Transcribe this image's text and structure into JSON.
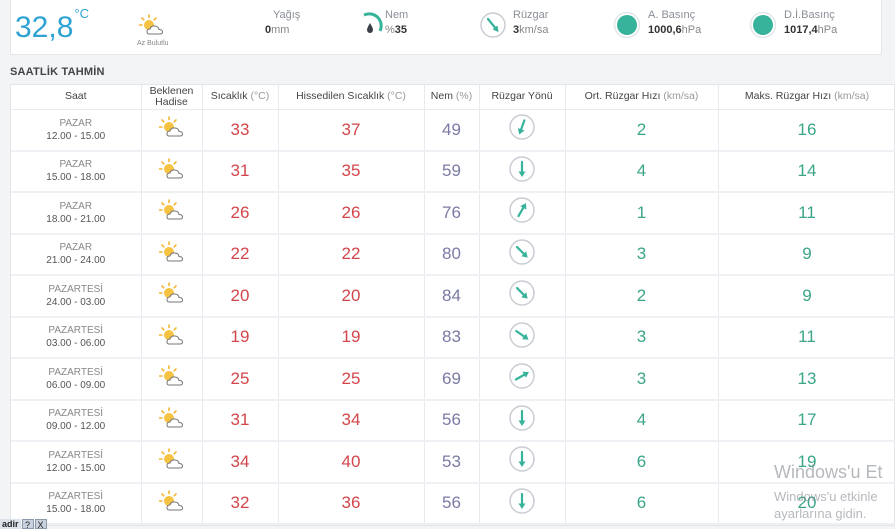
{
  "current": {
    "temperature": "32,8",
    "temperature_unit": "°C",
    "condition": "Az Bulutlu",
    "rain": {
      "label": "Yağış",
      "value": "0",
      "unit": "mm"
    },
    "humidity": {
      "label": "Nem",
      "prefix": "%",
      "value": "35"
    },
    "wind": {
      "label": "Rüzgar",
      "value": "3",
      "unit": "km/sa"
    },
    "pressure": {
      "label": "A. Basınç",
      "value": "1000,6",
      "unit": "hPa"
    },
    "sea_pressure": {
      "label": "D.İ.Basınç",
      "value": "1017,4",
      "unit": "hPa"
    }
  },
  "section_title": "SAATLİK TAHMİN",
  "columns": [
    {
      "label": "Saat",
      "unit": ""
    },
    {
      "label": "Beklenen Hadise",
      "unit": ""
    },
    {
      "label": "Sıcaklık",
      "unit": "(°C)"
    },
    {
      "label": "Hissedilen Sıcaklık",
      "unit": "(°C)"
    },
    {
      "label": "Nem",
      "unit": "(%)"
    },
    {
      "label": "Rüzgar Yönü",
      "unit": ""
    },
    {
      "label": "Ort. Rüzgar Hızı",
      "unit": "(km/sa)"
    },
    {
      "label": "Maks. Rüzgar Hızı",
      "unit": "(km/sa)"
    }
  ],
  "rows": [
    {
      "day": "PAZAR",
      "hours": "12.00 - 15.00",
      "temp": "33",
      "feels": "37",
      "humidity": "49",
      "wind_deg": 200,
      "avg_wind": "2",
      "max_wind": "16"
    },
    {
      "day": "PAZAR",
      "hours": "15.00 - 18.00",
      "temp": "31",
      "feels": "35",
      "humidity": "59",
      "wind_deg": 180,
      "avg_wind": "4",
      "max_wind": "14"
    },
    {
      "day": "PAZAR",
      "hours": "18.00 - 21.00",
      "temp": "26",
      "feels": "26",
      "humidity": "76",
      "wind_deg": 30,
      "avg_wind": "1",
      "max_wind": "11"
    },
    {
      "day": "PAZAR",
      "hours": "21.00 - 24.00",
      "temp": "22",
      "feels": "22",
      "humidity": "80",
      "wind_deg": 135,
      "avg_wind": "3",
      "max_wind": "9"
    },
    {
      "day": "PAZARTESİ",
      "hours": "24.00 - 03.00",
      "temp": "20",
      "feels": "20",
      "humidity": "84",
      "wind_deg": 135,
      "avg_wind": "2",
      "max_wind": "9"
    },
    {
      "day": "PAZARTESİ",
      "hours": "03.00 - 06.00",
      "temp": "19",
      "feels": "19",
      "humidity": "83",
      "wind_deg": 125,
      "avg_wind": "3",
      "max_wind": "11"
    },
    {
      "day": "PAZARTESİ",
      "hours": "06.00 - 09.00",
      "temp": "25",
      "feels": "25",
      "humidity": "69",
      "wind_deg": 60,
      "avg_wind": "3",
      "max_wind": "13"
    },
    {
      "day": "PAZARTESİ",
      "hours": "09.00 - 12.00",
      "temp": "31",
      "feels": "34",
      "humidity": "56",
      "wind_deg": 180,
      "avg_wind": "4",
      "max_wind": "17"
    },
    {
      "day": "PAZARTESİ",
      "hours": "12.00 - 15.00",
      "temp": "34",
      "feels": "40",
      "humidity": "53",
      "wind_deg": 180,
      "avg_wind": "6",
      "max_wind": "19"
    },
    {
      "day": "PAZARTESİ",
      "hours": "15.00 - 18.00",
      "temp": "32",
      "feels": "36",
      "humidity": "56",
      "wind_deg": 180,
      "avg_wind": "6",
      "max_wind": "20"
    }
  ],
  "watermark": {
    "title": "Windows'u Et",
    "line1": "Windows'u etkinle",
    "line2": "ayarlarına gidin."
  },
  "taskbar_fragment": {
    "text": "adir",
    "help": "?",
    "close": "X"
  },
  "colors": {
    "accent": "#2ea3d3",
    "teal": "#36b39a",
    "red": "#d2464a",
    "purple": "#7a7aa5",
    "green": "#3aa588"
  },
  "icons": {
    "condition": "partly-cloudy-sun-icon",
    "humidity": "humidity-gauge-icon",
    "wind": "wind-direction-icon",
    "pressure": "pressure-dot-icon"
  }
}
